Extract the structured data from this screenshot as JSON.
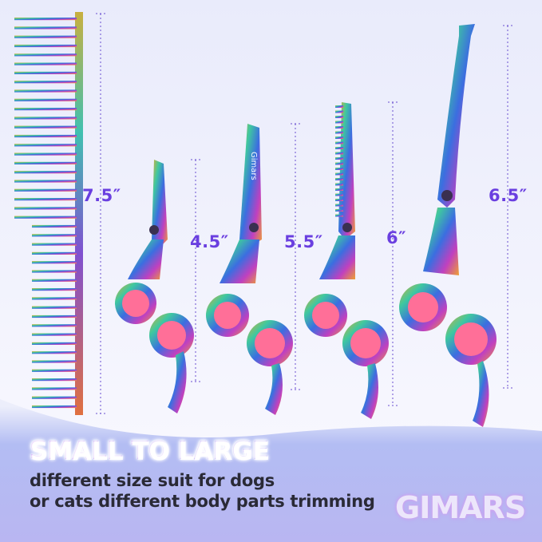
{
  "dimensions": {
    "comb": "7.5″",
    "small_scissors": "4.5″",
    "medium_scissors": "5.5″",
    "thinning_shears": "6″",
    "curved_scissors": "6.5″"
  },
  "engraving": "Gimars",
  "headline": "SMALL TO LARGE",
  "subtitle_lines": [
    "different size suit for dogs",
    "or cats different body parts trimming"
  ],
  "logo": "GIMARS",
  "colors": {
    "accent": "#6a3fe0",
    "handle_insert": "#ff5f8f",
    "text": "#2a2a36"
  }
}
